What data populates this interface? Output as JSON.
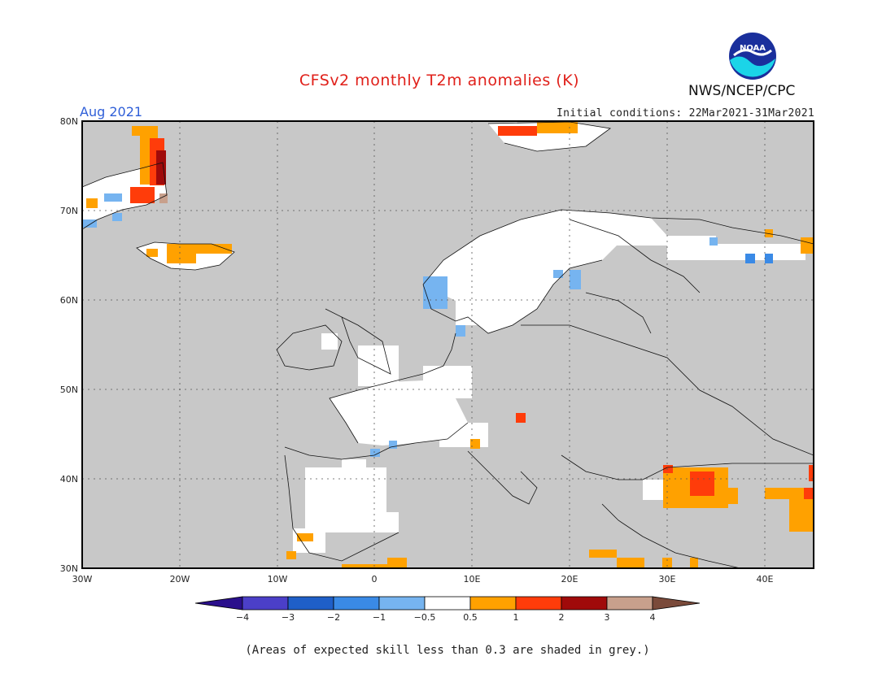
{
  "header": {
    "title": "CFSv2 monthly T2m anomalies (K)",
    "org": "NWS/NCEP/CPC",
    "logo_text": "NOAA",
    "valid_month": "Aug 2021",
    "initial_conditions": "Initial conditions: 22Mar2021-31Mar2021"
  },
  "map": {
    "region": "Europe",
    "lon_range": [
      -30,
      45
    ],
    "lat_range": [
      30,
      80
    ],
    "background_color": "#c8c8c8",
    "lat_labels": [
      "80N",
      "70N",
      "60N",
      "50N",
      "40N",
      "30N"
    ],
    "lon_labels": [
      "30W",
      "20W",
      "10W",
      "0",
      "10E",
      "20E",
      "30E",
      "40E"
    ]
  },
  "legend": {
    "bins": [
      {
        "from": null,
        "to": -4,
        "color": "#2a0f8c"
      },
      {
        "from": -4,
        "to": -3,
        "color": "#4b3fc8"
      },
      {
        "from": -3,
        "to": -2,
        "color": "#1f5fc8"
      },
      {
        "from": -2,
        "to": -1,
        "color": "#3a8ae6"
      },
      {
        "from": -1,
        "to": -0.5,
        "color": "#76b4f0"
      },
      {
        "from": -0.5,
        "to": 0.5,
        "color": "#ffffff"
      },
      {
        "from": 0.5,
        "to": 1,
        "color": "#ffa100"
      },
      {
        "from": 1,
        "to": 2,
        "color": "#ff3c0a"
      },
      {
        "from": 2,
        "to": 3,
        "color": "#a00a0a"
      },
      {
        "from": 3,
        "to": 4,
        "color": "#c8a08c"
      },
      {
        "from": 4,
        "to": null,
        "color": "#7a4a3a"
      }
    ],
    "tick_labels": [
      "−4",
      "−3",
      "−2",
      "−1",
      "−0.5",
      "0.5",
      "1",
      "2",
      "3",
      "4"
    ]
  },
  "footnote": "(Areas of expected skill less than 0.3 are shaded in grey.)"
}
